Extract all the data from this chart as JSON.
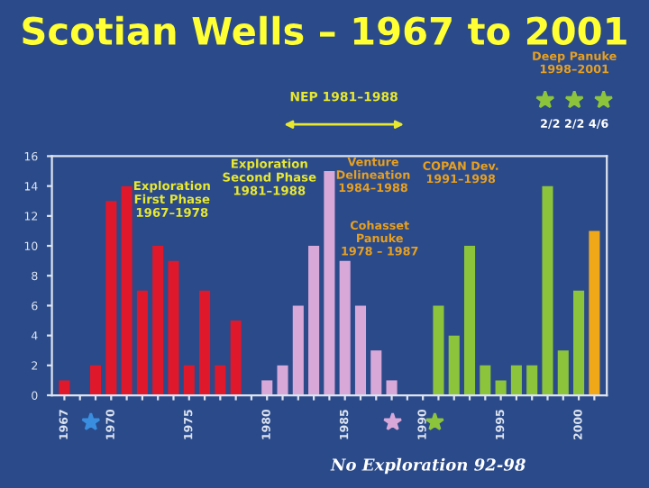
{
  "chart_data": {
    "type": "bar",
    "title": "Scotian Wells – 1967 to 2001",
    "categories": [
      "1967",
      null,
      null,
      "1970",
      null,
      null,
      null,
      null,
      "1975",
      null,
      null,
      null,
      null,
      "1980",
      null,
      null,
      null,
      null,
      "1985",
      null,
      null,
      null,
      null,
      "1990",
      null,
      null,
      null,
      null,
      "1995",
      null,
      null,
      null,
      null,
      "2000",
      null
    ],
    "values": [
      1,
      0,
      2,
      13,
      14,
      7,
      10,
      9,
      2,
      7,
      2,
      5,
      0,
      1,
      2,
      6,
      10,
      15,
      9,
      6,
      3,
      1,
      0,
      0,
      6,
      4,
      10,
      2,
      1,
      2,
      2,
      14,
      3,
      7,
      11
    ],
    "colors": [
      "#e0182c",
      "#e0182c",
      "#e0182c",
      "#e0182c",
      "#e0182c",
      "#e0182c",
      "#e0182c",
      "#e0182c",
      "#e0182c",
      "#e0182c",
      "#e0182c",
      "#e0182c",
      "#d8a8d8",
      "#d8a8d8",
      "#d8a8d8",
      "#d8a8d8",
      "#d8a8d8",
      "#d8a8d8",
      "#d8a8d8",
      "#d8a8d8",
      "#d8a8d8",
      "#d8a8d8",
      "#d8a8d8",
      "#d8a8d8",
      "#8cc43c",
      "#8cc43c",
      "#8cc43c",
      "#8cc43c",
      "#8cc43c",
      "#8cc43c",
      "#8cc43c",
      "#8cc43c",
      "#8cc43c",
      "#8cc43c",
      "#f0a818"
    ],
    "ylim": [
      0,
      16
    ],
    "yticks": [
      0,
      2,
      4,
      6,
      8,
      10,
      12,
      14,
      16
    ],
    "grid": false,
    "legend": false,
    "annotations": [
      "Exploration\nFirst Phase\n1967–1978",
      "Exploration\nSecond Phase\n1981–1988",
      "NEP 1981–1988",
      "Venture\nDelineation\n1984–1988",
      "Cohasset\nPanuke\n1978 – 1987",
      "COPAN Dev.\n1991–1998",
      "Deep Panuke\n1998–2001",
      "2/2 2/2 4/6",
      "No Exploration 92-98"
    ]
  }
}
